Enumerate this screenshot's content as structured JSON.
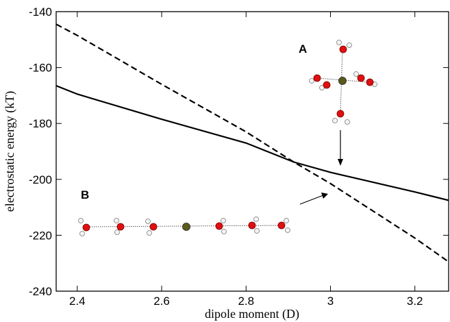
{
  "chart_data": {
    "type": "line",
    "x_label": "dipole moment (D)",
    "y_label": "electrostatic energy (kT)",
    "x": [
      2.35,
      2.4,
      2.6,
      2.8,
      2.913,
      3.0,
      3.2,
      3.28
    ],
    "series": [
      {
        "color": "#000000",
        "dashed": false,
        "values": [
          -166.5,
          -169.5,
          -178.5,
          -187,
          -193.8,
          -197.5,
          -204.5,
          -207.5
        ]
      },
      {
        "color": "#000000",
        "dashed": true,
        "values": [
          -144.5,
          -148.5,
          -166,
          -183,
          -193.8,
          -201.5,
          -221,
          -229.5
        ]
      }
    ],
    "xlim": [
      2.35,
      3.28
    ],
    "ylim": [
      -240,
      -140
    ],
    "xticks": [
      2.4,
      2.6,
      2.8,
      3,
      3.2
    ],
    "yticks": [
      -240,
      -220,
      -200,
      -180,
      -160,
      -140
    ],
    "annotations": [
      "A",
      "B"
    ]
  }
}
